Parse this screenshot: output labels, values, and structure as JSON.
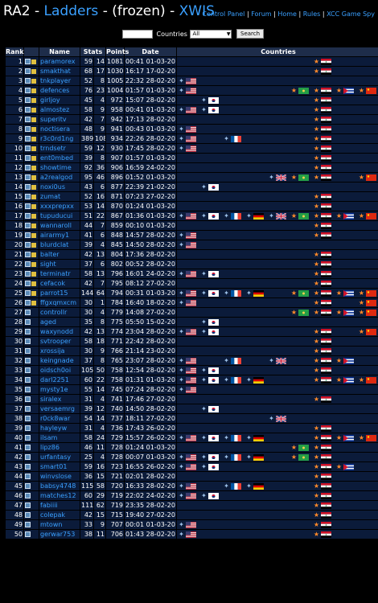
{
  "header": {
    "title_prefix": "RA2 - ",
    "title_link1": "Ladders",
    "title_mid": " - (frozen) - ",
    "title_link2": "XWIS",
    "nav": [
      "Control Panel",
      "Forum",
      "Home",
      "Rules",
      "XCC Game Spy"
    ]
  },
  "search": {
    "countries_label": "Countries",
    "countries_selected": "All",
    "button_label": "Search"
  },
  "table": {
    "columns": [
      "Rank",
      "",
      "Name",
      "Stats",
      "Points",
      "Date",
      "Countries"
    ],
    "rows": [
      {
        "rank": "1",
        "name": "paramorex",
        "w": "59",
        "l": "14",
        "points": "1081",
        "time": "00:41",
        "date": "01-03-2010",
        "flags": [
          "soviet-iraq"
        ]
      },
      {
        "rank": "2",
        "name": "smakthat",
        "w": "68",
        "l": "17",
        "points": "1030",
        "time": "16:17",
        "date": "17-02-2010",
        "flags": [
          "soviet-iraq"
        ]
      },
      {
        "rank": "3",
        "name": "tnkplayer",
        "w": "52",
        "l": "8",
        "points": "1005",
        "time": "22:32",
        "date": "28-02-2010",
        "flags": [
          "allied-usa"
        ]
      },
      {
        "rank": "4",
        "name": "defences",
        "w": "76",
        "l": "23",
        "points": "1004",
        "time": "01:57",
        "date": "01-03-2010",
        "flags": [
          "allied-usa",
          "soviet-libya",
          "soviet-iraq",
          "soviet-cuba",
          "soviet-russia"
        ]
      },
      {
        "rank": "5",
        "name": "girljoy",
        "w": "45",
        "l": "4",
        "points": "972",
        "time": "15:07",
        "date": "28-02-2010",
        "flags": [
          "allied-korea",
          "soviet-iraq"
        ]
      },
      {
        "rank": "6",
        "name": "almostez",
        "w": "58",
        "l": "9",
        "points": "958",
        "time": "00:41",
        "date": "01-03-2010",
        "flags": [
          "allied-usa",
          "allied-korea",
          "soviet-iraq"
        ]
      },
      {
        "rank": "7",
        "name": "superitv",
        "w": "42",
        "l": "7",
        "points": "942",
        "time": "17:13",
        "date": "28-02-2010",
        "flags": [
          "soviet-iraq"
        ]
      },
      {
        "rank": "8",
        "name": "noctisera",
        "w": "48",
        "l": "9",
        "points": "941",
        "time": "00:43",
        "date": "01-03-2010",
        "flags": [
          "allied-usa",
          "soviet-iraq"
        ]
      },
      {
        "rank": "9",
        "name": "r3c0rd1ng",
        "w": "389",
        "l": "108",
        "points": "934",
        "time": "22:26",
        "date": "28-02-2010",
        "flags": [
          "allied-usa",
          "allied-france",
          "soviet-iraq"
        ]
      },
      {
        "rank": "10",
        "name": "trndsetr",
        "w": "59",
        "l": "12",
        "points": "930",
        "time": "17:45",
        "date": "28-02-2010",
        "flags": [
          "allied-usa",
          "soviet-iraq"
        ]
      },
      {
        "rank": "11",
        "name": "ent0mbed",
        "w": "39",
        "l": "8",
        "points": "907",
        "time": "01:57",
        "date": "01-03-2010",
        "flags": [
          "soviet-iraq"
        ]
      },
      {
        "rank": "12",
        "name": "showtime",
        "w": "92",
        "l": "36",
        "points": "906",
        "time": "16:59",
        "date": "24-02-2010",
        "flags": [
          "soviet-iraq"
        ]
      },
      {
        "rank": "13",
        "name": "a2realgod",
        "w": "95",
        "l": "46",
        "points": "896",
        "time": "01:52",
        "date": "01-03-2010",
        "flags": [
          "allied-britain",
          "soviet-libya",
          "soviet-iraq",
          "soviet-russia"
        ]
      },
      {
        "rank": "14",
        "name": "noxi0us",
        "w": "43",
        "l": "6",
        "points": "877",
        "time": "22:39",
        "date": "21-02-2010",
        "flags": [
          "allied-korea"
        ]
      },
      {
        "rank": "15",
        "name": "zumat",
        "w": "52",
        "l": "16",
        "points": "871",
        "time": "07:23",
        "date": "27-02-2010",
        "flags": [
          "soviet-iraq"
        ]
      },
      {
        "rank": "16",
        "name": "xxxprepxx",
        "w": "53",
        "l": "14",
        "points": "870",
        "time": "01:24",
        "date": "01-03-2010",
        "flags": [
          "soviet-iraq"
        ]
      },
      {
        "rank": "17",
        "name": "tupuducui",
        "w": "51",
        "l": "22",
        "points": "867",
        "time": "01:36",
        "date": "01-03-2010",
        "flags": [
          "allied-usa",
          "allied-korea",
          "allied-france",
          "allied-germany",
          "allied-britain",
          "soviet-libya",
          "soviet-iraq",
          "soviet-cuba",
          "soviet-russia"
        ]
      },
      {
        "rank": "18",
        "name": "wannaroll",
        "w": "44",
        "l": "7",
        "points": "859",
        "time": "00:10",
        "date": "01-03-2010",
        "flags": [
          "soviet-iraq"
        ]
      },
      {
        "rank": "19",
        "name": "airarmy1",
        "w": "41",
        "l": "6",
        "points": "848",
        "time": "14:57",
        "date": "28-02-2010",
        "flags": [
          "allied-usa",
          "soviet-iraq"
        ]
      },
      {
        "rank": "20",
        "name": "blurdclat",
        "w": "39",
        "l": "4",
        "points": "845",
        "time": "14:50",
        "date": "28-02-2010",
        "flags": [
          "allied-usa"
        ]
      },
      {
        "rank": "21",
        "name": "balter",
        "w": "42",
        "l": "13",
        "points": "804",
        "time": "17:36",
        "date": "28-02-2010",
        "flags": [
          "soviet-iraq"
        ]
      },
      {
        "rank": "22",
        "name": "sight",
        "w": "37",
        "l": "6",
        "points": "802",
        "time": "00:52",
        "date": "28-02-2010",
        "flags": [
          "soviet-iraq"
        ]
      },
      {
        "rank": "23",
        "name": "terminatr",
        "w": "58",
        "l": "13",
        "points": "796",
        "time": "16:01",
        "date": "24-02-2010",
        "flags": [
          "allied-usa",
          "allied-korea",
          "soviet-iraq"
        ]
      },
      {
        "rank": "24",
        "name": "cefacok",
        "w": "42",
        "l": "7",
        "points": "795",
        "time": "08:12",
        "date": "27-02-2010",
        "flags": [
          "soviet-iraq"
        ]
      },
      {
        "rank": "25",
        "name": "parrot15",
        "w": "144",
        "l": "64",
        "points": "794",
        "time": "00:31",
        "date": "01-03-2010",
        "flags": [
          "allied-usa",
          "allied-korea",
          "allied-france",
          "allied-germany",
          "soviet-libya",
          "soviet-iraq",
          "soviet-cuba",
          "soviet-russia"
        ]
      },
      {
        "rank": "26",
        "name": "ffgxqmxcm",
        "w": "30",
        "l": "1",
        "points": "784",
        "time": "16:40",
        "date": "18-02-2010",
        "flags": [
          "allied-usa",
          "soviet-iraq",
          "soviet-russia"
        ]
      },
      {
        "rank": "27",
        "name": "controllr",
        "w": "30",
        "l": "4",
        "points": "779",
        "time": "14:08",
        "date": "27-02-2010",
        "flags": [
          "soviet-libya",
          "soviet-iraq",
          "soviet-cuba",
          "soviet-russia"
        ]
      },
      {
        "rank": "28",
        "name": "aged",
        "w": "35",
        "l": "8",
        "points": "775",
        "time": "05:50",
        "date": "15-02-2010",
        "flags": [
          "allied-korea"
        ]
      },
      {
        "rank": "29",
        "name": "waxynodd",
        "w": "42",
        "l": "13",
        "points": "774",
        "time": "23:04",
        "date": "28-02-2010",
        "flags": [
          "allied-usa",
          "allied-korea",
          "soviet-iraq",
          "soviet-russia"
        ]
      },
      {
        "rank": "30",
        "name": "svtrooper",
        "w": "58",
        "l": "18",
        "points": "771",
        "time": "22:42",
        "date": "28-02-2010",
        "flags": [
          "soviet-iraq"
        ]
      },
      {
        "rank": "31",
        "name": "xrossija",
        "w": "30",
        "l": "9",
        "points": "766",
        "time": "21:14",
        "date": "23-02-2010",
        "flags": [
          "soviet-iraq"
        ]
      },
      {
        "rank": "32",
        "name": "keingnade",
        "w": "37",
        "l": "8",
        "points": "765",
        "time": "23:07",
        "date": "28-02-2010",
        "flags": [
          "allied-usa",
          "allied-france",
          "allied-britain",
          "soviet-iraq",
          "soviet-cuba"
        ]
      },
      {
        "rank": "33",
        "name": "oidsch0oi",
        "w": "105",
        "l": "50",
        "points": "758",
        "time": "12:54",
        "date": "28-02-2010",
        "flags": [
          "allied-usa",
          "allied-korea",
          "soviet-iraq"
        ]
      },
      {
        "rank": "34",
        "name": "darl2251",
        "w": "60",
        "l": "22",
        "points": "758",
        "time": "01:31",
        "date": "01-03-2010",
        "flags": [
          "allied-usa",
          "allied-korea",
          "allied-france",
          "allied-germany",
          "soviet-iraq",
          "soviet-cuba",
          "soviet-russia"
        ]
      },
      {
        "rank": "35",
        "name": "mysty1e",
        "w": "55",
        "l": "14",
        "points": "745",
        "time": "07:24",
        "date": "28-02-2010",
        "flags": [
          "allied-usa"
        ]
      },
      {
        "rank": "36",
        "name": "siralex",
        "w": "31",
        "l": "4",
        "points": "741",
        "time": "17:46",
        "date": "27-02-2010",
        "flags": [
          "soviet-iraq"
        ]
      },
      {
        "rank": "37",
        "name": "versaemrg",
        "w": "39",
        "l": "12",
        "points": "740",
        "time": "14:50",
        "date": "28-02-2010",
        "flags": [
          "allied-korea"
        ]
      },
      {
        "rank": "38",
        "name": "r0ck8war",
        "w": "54",
        "l": "14",
        "points": "737",
        "time": "18:11",
        "date": "27-02-2010",
        "flags": [
          "allied-britain"
        ]
      },
      {
        "rank": "39",
        "name": "hayleyw",
        "w": "31",
        "l": "4",
        "points": "736",
        "time": "17:43",
        "date": "26-02-2010",
        "flags": [
          "soviet-iraq"
        ]
      },
      {
        "rank": "40",
        "name": "ilsam",
        "w": "58",
        "l": "24",
        "points": "729",
        "time": "15:57",
        "date": "26-02-2010",
        "flags": [
          "allied-usa",
          "allied-korea",
          "allied-france",
          "allied-germany",
          "soviet-iraq",
          "soviet-cuba",
          "soviet-russia"
        ]
      },
      {
        "rank": "41",
        "name": "lipz86",
        "w": "46",
        "l": "11",
        "points": "728",
        "time": "01:24",
        "date": "01-03-2010",
        "flags": [
          "soviet-libya",
          "soviet-iraq"
        ]
      },
      {
        "rank": "42",
        "name": "urfantasy",
        "w": "25",
        "l": "4",
        "points": "728",
        "time": "00:07",
        "date": "01-03-2010",
        "flags": [
          "allied-usa",
          "allied-korea",
          "allied-france",
          "allied-germany",
          "soviet-libya",
          "soviet-iraq"
        ]
      },
      {
        "rank": "43",
        "name": "smart01",
        "w": "59",
        "l": "16",
        "points": "723",
        "time": "16:55",
        "date": "26-02-2010",
        "flags": [
          "allied-usa",
          "allied-korea",
          "soviet-iraq",
          "soviet-cuba"
        ]
      },
      {
        "rank": "44",
        "name": "winvslose",
        "w": "36",
        "l": "15",
        "points": "721",
        "time": "02:01",
        "date": "28-02-2010",
        "flags": [
          "soviet-iraq"
        ]
      },
      {
        "rank": "45",
        "name": "babsy4748",
        "w": "115",
        "l": "58",
        "points": "720",
        "time": "16:33",
        "date": "28-02-2010",
        "flags": [
          "allied-usa",
          "allied-france",
          "allied-germany",
          "soviet-iraq"
        ]
      },
      {
        "rank": "46",
        "name": "matches12",
        "w": "60",
        "l": "29",
        "points": "719",
        "time": "22:02",
        "date": "24-02-2010",
        "flags": [
          "allied-usa",
          "allied-korea",
          "soviet-iraq"
        ]
      },
      {
        "rank": "47",
        "name": "fabiiii",
        "w": "111",
        "l": "62",
        "points": "719",
        "time": "23:35",
        "date": "28-02-2010",
        "flags": [
          "soviet-iraq"
        ]
      },
      {
        "rank": "48",
        "name": "colepak",
        "w": "42",
        "l": "15",
        "points": "715",
        "time": "19:40",
        "date": "27-02-2010",
        "flags": [
          "soviet-iraq"
        ]
      },
      {
        "rank": "49",
        "name": "mtown",
        "w": "33",
        "l": "9",
        "points": "707",
        "time": "00:01",
        "date": "01-03-2010",
        "flags": [
          "allied-usa",
          "soviet-iraq"
        ]
      },
      {
        "rank": "50",
        "name": "gerwar753",
        "w": "38",
        "l": "11",
        "points": "706",
        "time": "01:43",
        "date": "28-02-2010",
        "flags": [
          "allied-usa",
          "soviet-iraq"
        ]
      }
    ]
  },
  "colors": {
    "background": "#000000",
    "cell": "#0b1b3a",
    "header_cell": "#1e2d4a",
    "link": "#3aa0ff"
  }
}
